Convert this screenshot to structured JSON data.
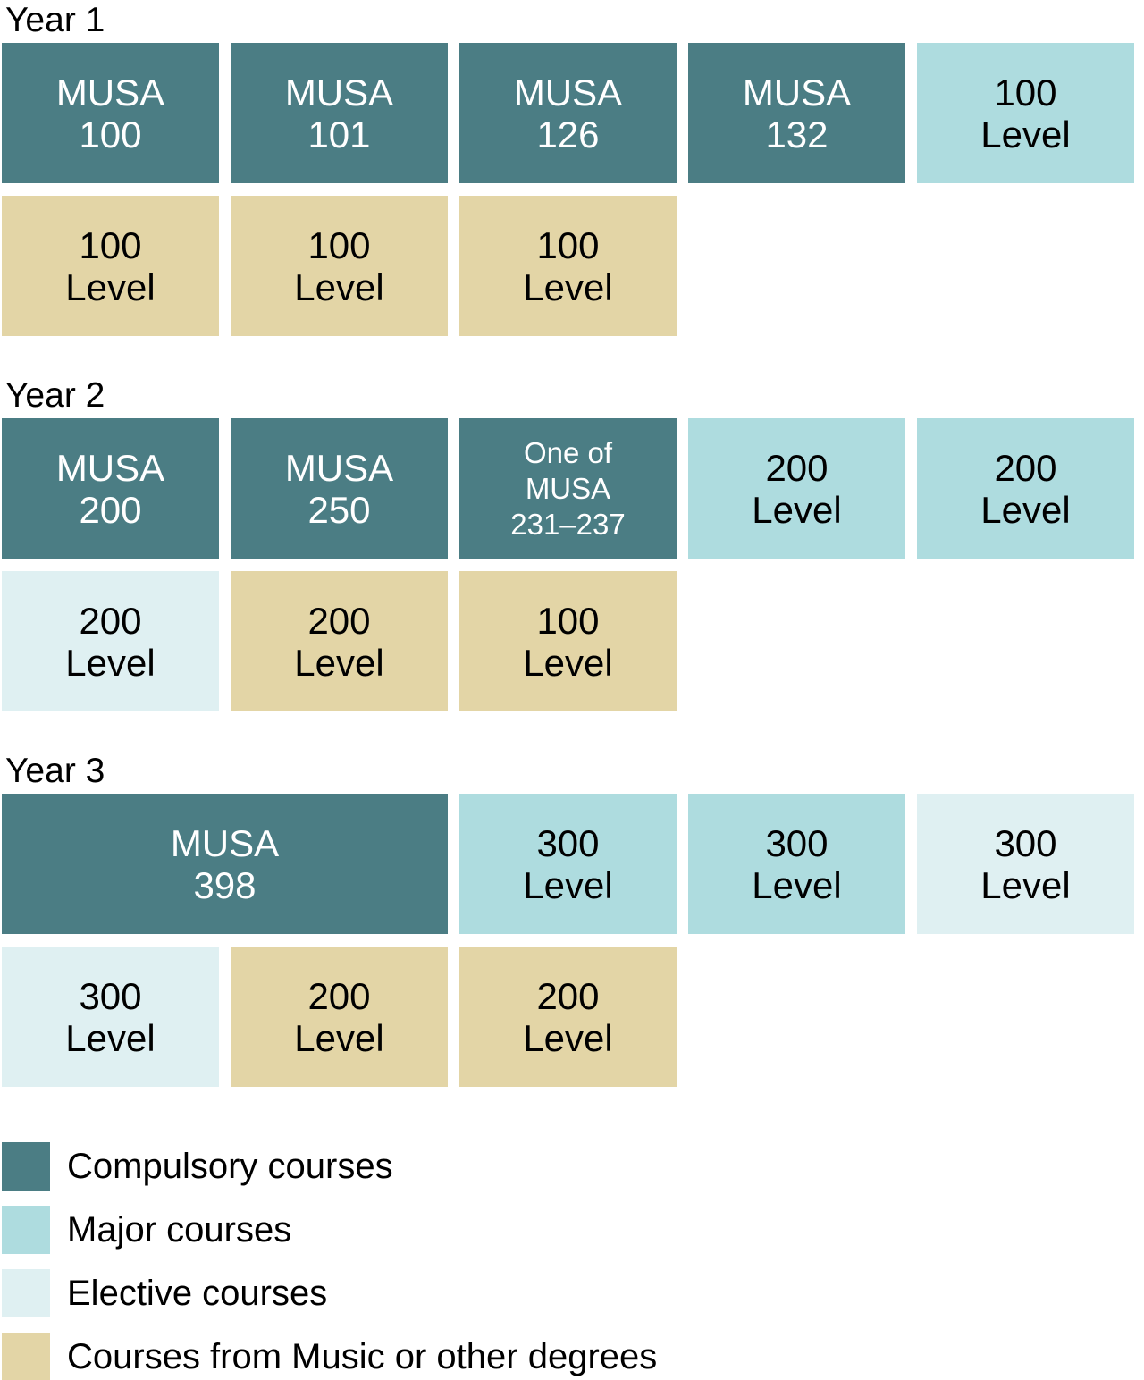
{
  "years": [
    {
      "label": "Year 1",
      "row1": [
        {
          "text": "MUSA\n100",
          "type": "compulsory"
        },
        {
          "text": "MUSA\n101",
          "type": "compulsory"
        },
        {
          "text": "MUSA\n126",
          "type": "compulsory"
        },
        {
          "text": "MUSA\n132",
          "type": "compulsory"
        },
        {
          "text": "100\nLevel",
          "type": "major"
        }
      ],
      "row2": [
        {
          "text": "100\nLevel",
          "type": "other"
        },
        {
          "text": "100\nLevel",
          "type": "other"
        },
        {
          "text": "100\nLevel",
          "type": "other"
        }
      ]
    },
    {
      "label": "Year 2",
      "row1": [
        {
          "text": "MUSA\n200",
          "type": "compulsory"
        },
        {
          "text": "MUSA\n250",
          "type": "compulsory"
        },
        {
          "text": "One of\nMUSA\n231–237",
          "type": "compulsory"
        },
        {
          "text": "200\nLevel",
          "type": "major"
        },
        {
          "text": "200\nLevel",
          "type": "major"
        }
      ],
      "row2": [
        {
          "text": "200\nLevel",
          "type": "elective"
        },
        {
          "text": "200\nLevel",
          "type": "other"
        },
        {
          "text": "100\nLevel",
          "type": "other"
        }
      ]
    },
    {
      "label": "Year 3",
      "row1": [
        {
          "text": "MUSA\n398",
          "type": "compulsory",
          "span": 2
        },
        {
          "text": "300\nLevel",
          "type": "major"
        },
        {
          "text": "300\nLevel",
          "type": "major"
        },
        {
          "text": "300\nLevel",
          "type": "elective"
        }
      ],
      "row2": [
        {
          "text": "300\nLevel",
          "type": "elective"
        },
        {
          "text": "200\nLevel",
          "type": "other"
        },
        {
          "text": "200\nLevel",
          "type": "other"
        }
      ]
    }
  ],
  "legend": [
    {
      "label": "Compulsory courses",
      "type": "compulsory"
    },
    {
      "label": "Major courses",
      "type": "major"
    },
    {
      "label": "Elective courses",
      "type": "elective"
    },
    {
      "label": "Courses from Music or other degrees",
      "type": "other"
    }
  ],
  "colors": {
    "compulsory": "#4B7D84",
    "major": "#AEDCDF",
    "elective": "#DFF0F2",
    "other": "#E3D5A6",
    "background": "#FFFFFF",
    "text_on_dark": "#FFFFFF",
    "text_on_light": "#000000"
  }
}
